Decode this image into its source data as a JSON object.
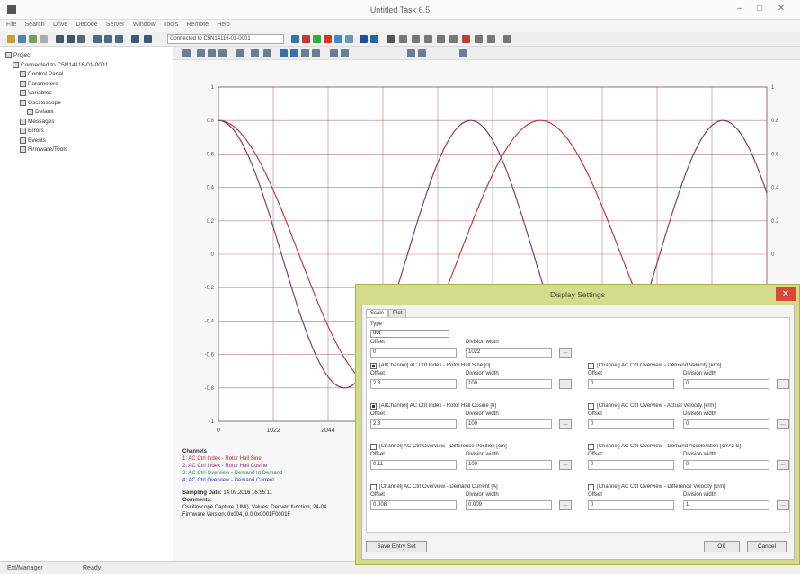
{
  "window": {
    "title": "Untitled Task 6.5",
    "min": "–",
    "max": "□",
    "close": "✕"
  },
  "menu": [
    "File",
    "Search",
    "Drive",
    "Decode",
    "Server",
    "Window",
    "Tools",
    "Remote",
    "Help"
  ],
  "toolbar": {
    "device_combo": "Connected to C5N14116-01-0001"
  },
  "tree": [
    {
      "label": "Project",
      "level": 0
    },
    {
      "label": "Connected to C5N14116-01-0001",
      "level": 1
    },
    {
      "label": "Control Panel",
      "level": 2
    },
    {
      "label": "Parameters",
      "level": 2
    },
    {
      "label": "Variables",
      "level": 2
    },
    {
      "label": "Oscilloscope",
      "level": 2
    },
    {
      "label": "Default",
      "level": 3
    },
    {
      "label": "Messages",
      "level": 2
    },
    {
      "label": "Errors",
      "level": 2
    },
    {
      "label": "Events",
      "level": 2
    },
    {
      "label": "Firmware/Tools",
      "level": 2
    }
  ],
  "chart_data": {
    "type": "line",
    "x_ticks": [
      "0",
      "1022",
      "2044"
    ],
    "y_left_ticks": [
      "1",
      "0.8",
      "0.6",
      "0.4",
      "0.2",
      "0",
      "-0.2",
      "-0.4",
      "-0.6",
      "-0.8",
      "-1"
    ],
    "y_right_ticks": [
      "1",
      "0.8",
      "0.6",
      "0.4",
      "0.2",
      "0",
      "-0.2",
      "-0.4",
      "-0.6",
      "-0.8",
      "-1"
    ],
    "series": [
      {
        "color": "#c23b3b",
        "points": [
          [
            0,
            0.8
          ],
          [
            400,
            -0.1
          ],
          [
            900,
            -0.8
          ],
          [
            1300,
            -0.5
          ],
          [
            1800,
            0.5
          ],
          [
            2300,
            0.8
          ]
        ]
      },
      {
        "color": "#8a3a6e",
        "points": [
          [
            0,
            0.8
          ],
          [
            600,
            -0.2
          ],
          [
            1200,
            -0.8
          ],
          [
            1700,
            -0.2
          ],
          [
            2300,
            0.8
          ]
        ]
      }
    ]
  },
  "legend": {
    "header": "Channels",
    "items": [
      {
        "text": "1: AC Ctrl Index - Rotor Hall Sine",
        "color": "#cc2222"
      },
      {
        "text": "2: AC Ctrl Index - Rotor Hall Cosine",
        "color": "#aa2288"
      },
      {
        "text": "3: AC Ctrl Overview - Demand Id Demand",
        "color": "#229944"
      },
      {
        "text": "4: AC Ctrl Overview - Demand Current",
        "color": "#3344cc"
      }
    ],
    "sampling_label": "Sampling Date:",
    "sampling_value": "14.09.2016 16:55:11",
    "comments_label": "Comments:",
    "comments": "Oscilloscope Capture (UMI), Values: Derived function, 24-04\nFirmware Version: 0x004, 0.0.0x0001F0001F"
  },
  "status": {
    "left": "Ext/Manager",
    "right": "Ready"
  },
  "dialog": {
    "title": "Display Settings",
    "close": "✕",
    "tabs": [
      "Scale",
      "Plot"
    ],
    "type_label": "Type",
    "type_value": "dot",
    "offset_label": "Offset",
    "offset_value": "0",
    "division_label": "Division width",
    "division_value": "1022",
    "channels": [
      {
        "name": "[AllChannel] AC Ctrl Index - Rotor Hall Sine [0]",
        "offset": "2.8",
        "division": "100",
        "checked": true
      },
      {
        "name": "[Channel] AC Ctrl Overview - Demand Velocity [krm]",
        "offset": "0",
        "division": "0",
        "checked": false
      },
      {
        "name": "[AllChannel] AC Ctrl Index - Rotor Hall Cosine [0]",
        "offset": "2.8",
        "division": "100",
        "checked": true
      },
      {
        "name": "[Channel] AC Ctrl Overview - Actual Velocity [krm]",
        "offset": "0",
        "division": "0",
        "checked": false
      },
      {
        "name": "[Channel] AC Ctrl Overview - Difference Position [cm]",
        "offset": "0.11",
        "division": "100",
        "checked": false
      },
      {
        "name": "[Channel] AC Ctrl Overview - Demand Acceleration [cm^2 S]",
        "offset": "0",
        "division": "0",
        "checked": false
      },
      {
        "name": "[Channel] AC Ctrl Overview - Demand Current [A]",
        "offset": "0.008",
        "division": "0.009",
        "checked": false
      },
      {
        "name": "[Channel] AC Ctrl Overview - Difference Velocity [krm]",
        "offset": "0",
        "division": "1",
        "checked": false
      }
    ],
    "offset_field_label": "Offset",
    "division_field_label": "Division width",
    "dots": "...",
    "save_label": "Save Entry Set",
    "ok_label": "OK",
    "cancel_label": "Cancel"
  }
}
